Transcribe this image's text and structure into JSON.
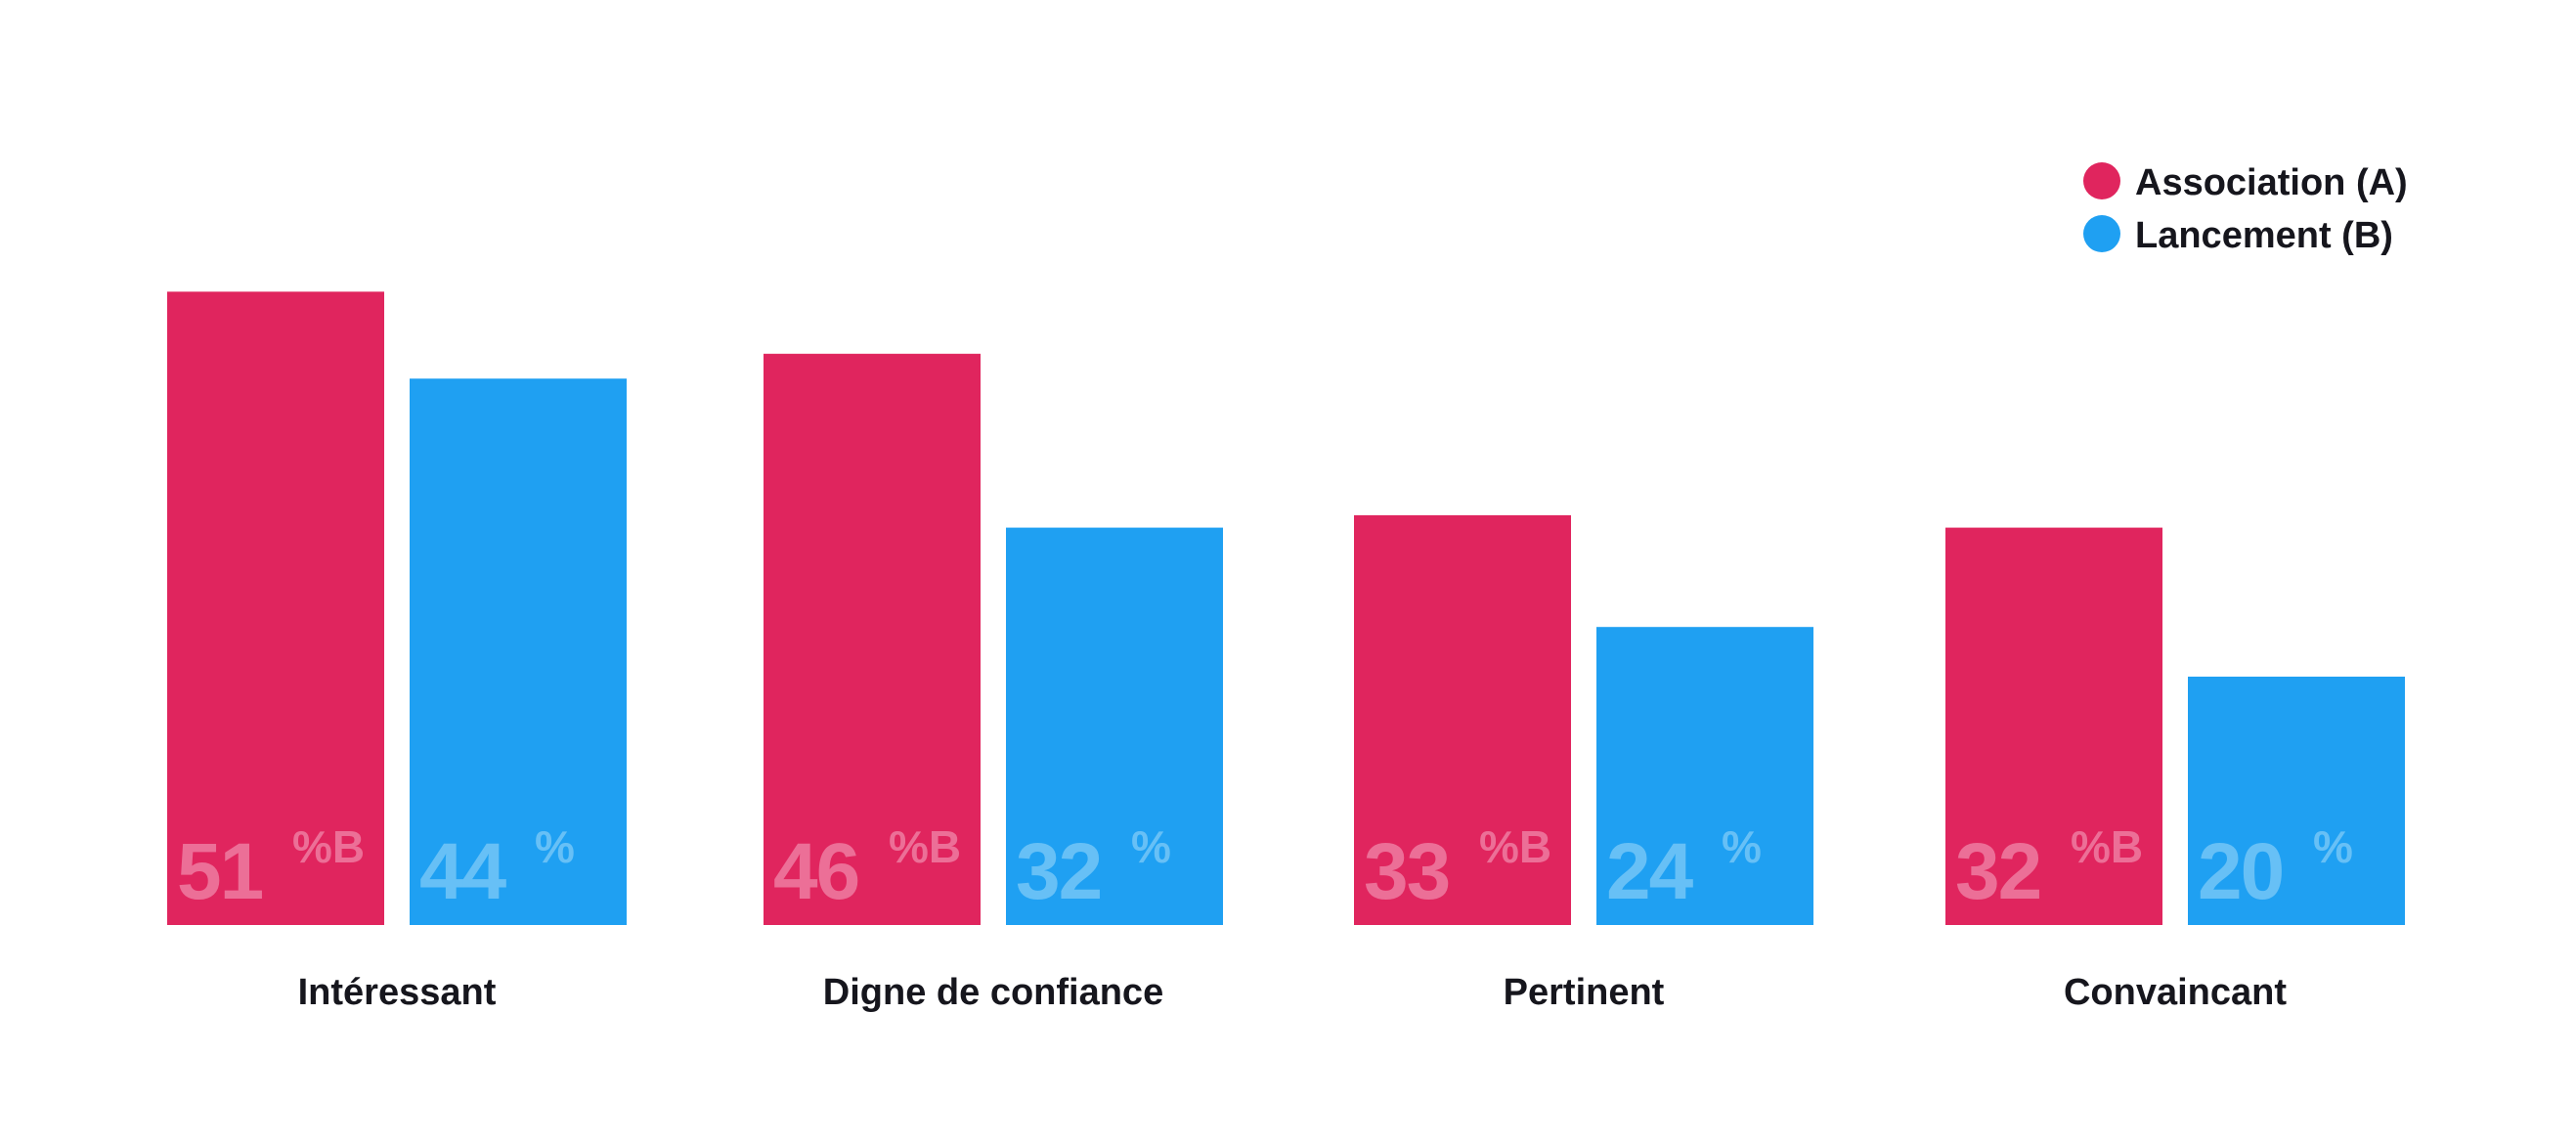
{
  "chart_data": {
    "type": "bar",
    "categories": [
      "Intéressant",
      "Digne de confiance",
      "Pertinent",
      "Convaincant"
    ],
    "series": [
      {
        "name": "Association (A)",
        "color": "#e0255e",
        "label_color": "#ec6f97",
        "values": [
          51,
          46,
          33,
          32
        ],
        "value_labels": [
          "51",
          "46",
          "33",
          "32"
        ],
        "unit_labels": [
          "%B",
          "%B",
          "%B",
          "%B"
        ]
      },
      {
        "name": "Lancement (B)",
        "color": "#1fa0f2",
        "label_color": "#67c0f6",
        "values": [
          44,
          32,
          24,
          20
        ],
        "value_labels": [
          "44",
          "32",
          "24",
          "20"
        ],
        "unit_labels": [
          "%",
          "%",
          "%",
          "%"
        ]
      }
    ],
    "ylim": [
      0,
      100
    ],
    "grid": false,
    "legend_position": "top-right",
    "title": "",
    "xlabel": "",
    "ylabel": ""
  }
}
